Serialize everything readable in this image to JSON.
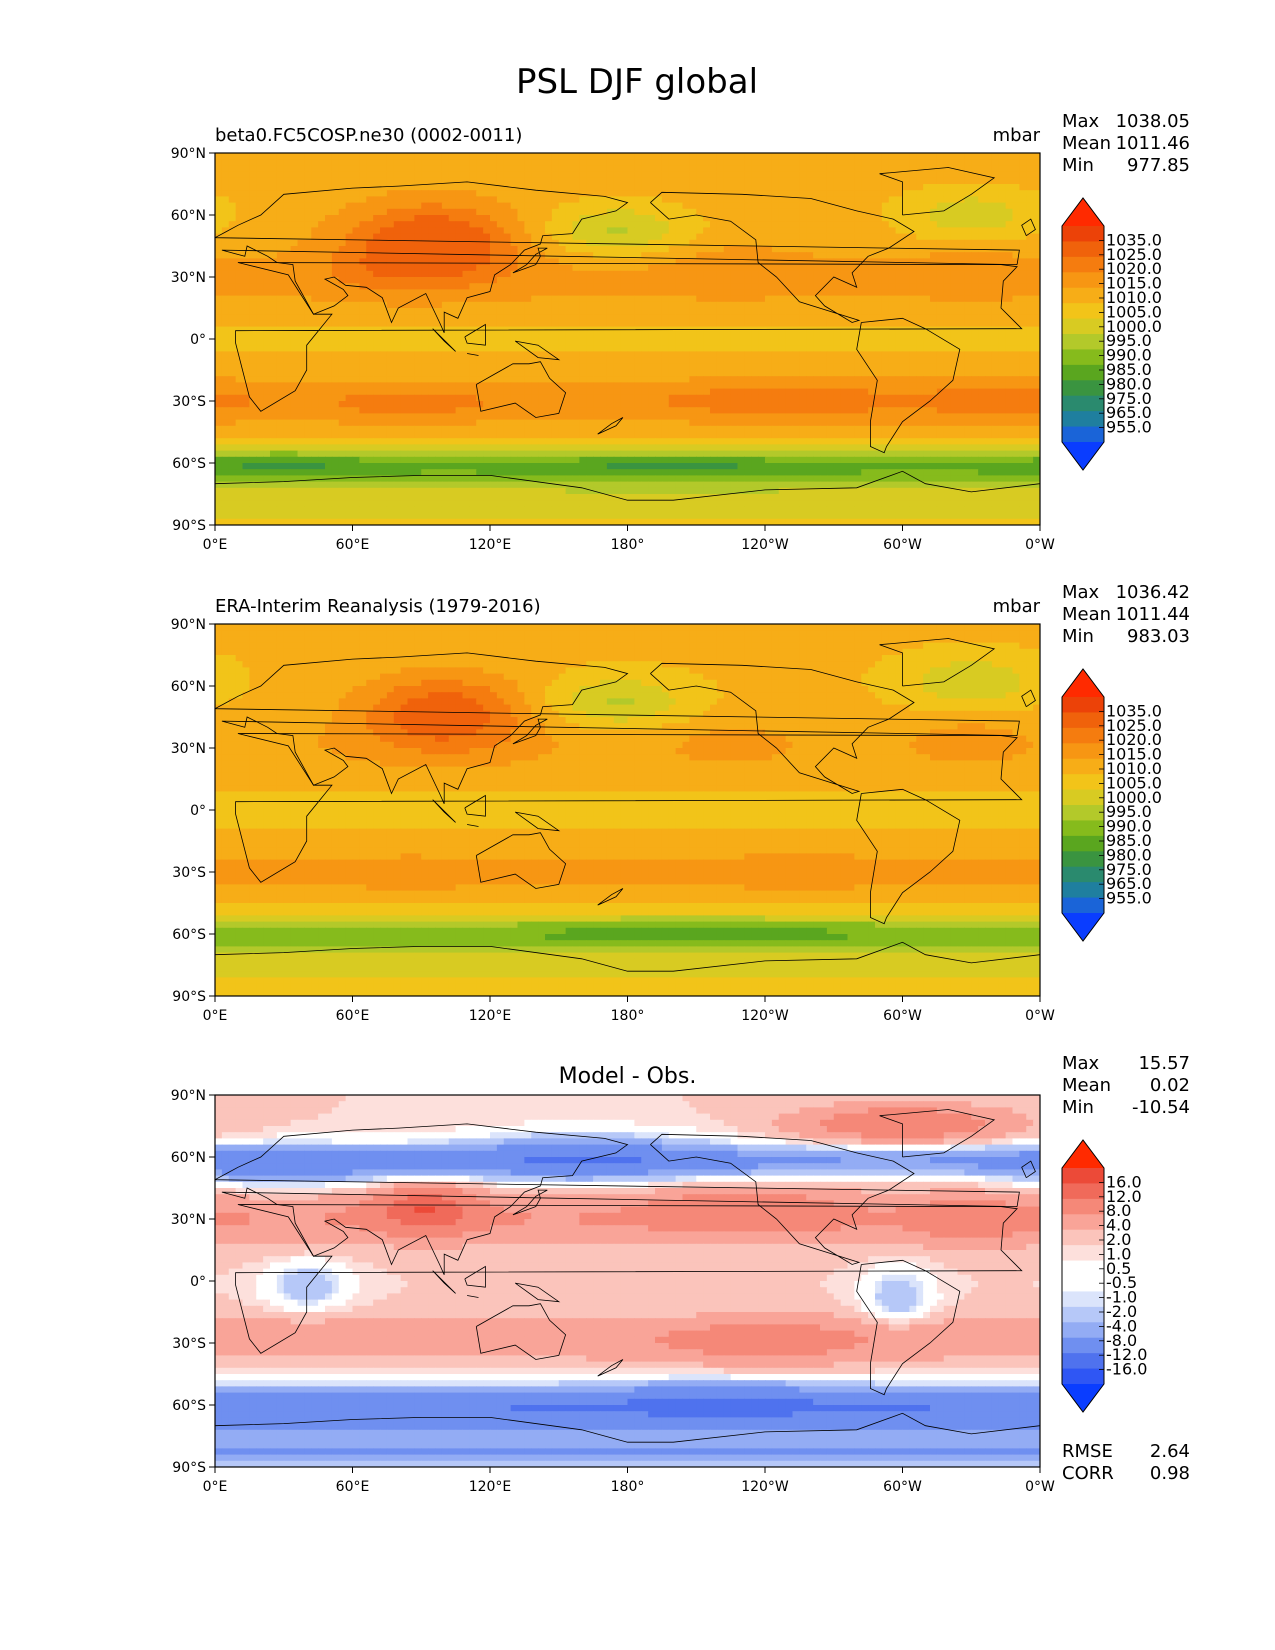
{
  "figure_title": "PSL DJF global",
  "colors": {
    "psl_under": "#0a3dff",
    "psl_over": "#ff2a00",
    "diff_under": "#0a3dff",
    "diff_over": "#ff2a00",
    "coast": "#000000"
  },
  "chart_data": [
    {
      "type": "heatmap",
      "panel": "model",
      "title_left": "beta0.FC5COSP.ne30 (0002-0011)",
      "title_center": "",
      "title_right": "mbar",
      "stats": [
        {
          "label": "Max",
          "value": "1038.05"
        },
        {
          "label": "Mean",
          "value": "1011.46"
        },
        {
          "label": "Min",
          "value": "977.85"
        }
      ],
      "colorbar": "psl",
      "ylim": [
        -90,
        90
      ],
      "xlim": [
        0,
        360
      ],
      "yticks": [
        "90°N",
        "60°N",
        "30°N",
        "0°",
        "30°S",
        "60°S",
        "90°S"
      ],
      "xticks": [
        "0°E",
        "60°E",
        "120°E",
        "180°",
        "120°W",
        "60°W",
        "0°W"
      ]
    },
    {
      "type": "heatmap",
      "panel": "obs",
      "title_left": "ERA-Interim Reanalysis (1979-2016)",
      "title_center": "",
      "title_right": "mbar",
      "stats": [
        {
          "label": "Max",
          "value": "1036.42"
        },
        {
          "label": "Mean",
          "value": "1011.44"
        },
        {
          "label": "Min",
          "value": "983.03"
        }
      ],
      "colorbar": "psl",
      "ylim": [
        -90,
        90
      ],
      "xlim": [
        0,
        360
      ],
      "yticks": [
        "90°N",
        "60°N",
        "30°N",
        "0°",
        "30°S",
        "60°S",
        "90°S"
      ],
      "xticks": [
        "0°E",
        "60°E",
        "120°E",
        "180°",
        "120°W",
        "60°W",
        "0°W"
      ]
    },
    {
      "type": "heatmap",
      "panel": "diff",
      "title_left": "",
      "title_center": "Model - Obs.",
      "title_right": "",
      "stats": [
        {
          "label": "Max",
          "value": "15.57"
        },
        {
          "label": "Mean",
          "value": "0.02"
        },
        {
          "label": "Min",
          "value": "-10.54"
        }
      ],
      "metrics": [
        {
          "label": "RMSE",
          "value": "2.64"
        },
        {
          "label": "CORR",
          "value": "0.98"
        }
      ],
      "colorbar": "diff",
      "ylim": [
        -90,
        90
      ],
      "xlim": [
        0,
        360
      ],
      "yticks": [
        "90°N",
        "60°N",
        "30°N",
        "0°",
        "30°S",
        "60°S",
        "90°S"
      ],
      "xticks": [
        "0°E",
        "60°E",
        "120°E",
        "180°",
        "120°W",
        "60°W",
        "0°W"
      ]
    }
  ],
  "colorbars": {
    "psl": {
      "colors": [
        "#0a3dff",
        "#1a64d8",
        "#1f7f9f",
        "#2a8a6e",
        "#3a9440",
        "#5aa61f",
        "#86bb1c",
        "#b3c92a",
        "#d8cb22",
        "#f2c419",
        "#f7ad17",
        "#f79613",
        "#f57c0f",
        "#f0620b",
        "#ec4208",
        "#ff2a00"
      ],
      "labels": [
        "1035.0",
        "1025.0",
        "1020.0",
        "1015.0",
        "1010.0",
        "1005.0",
        "1000.0",
        "995.0",
        "990.0",
        "985.0",
        "980.0",
        "975.0",
        "965.0",
        "955.0"
      ]
    },
    "diff": {
      "colors": [
        "#0a3dff",
        "#2f56f4",
        "#4f72ee",
        "#6f8ff0",
        "#93acf4",
        "#b6c8f8",
        "#dbe4fb",
        "#ffffff",
        "#ffffff",
        "#fde0dc",
        "#fbc4bb",
        "#f9a498",
        "#f58878",
        "#f06a5a",
        "#ec4a38",
        "#ff2a00"
      ],
      "labels": [
        "16.0",
        "12.0",
        "8.0",
        "4.0",
        "2.0",
        "1.0",
        "0.5",
        "-0.5",
        "-1.0",
        "-2.0",
        "-4.0",
        "-8.0",
        "-12.0",
        "-16.0"
      ]
    }
  }
}
